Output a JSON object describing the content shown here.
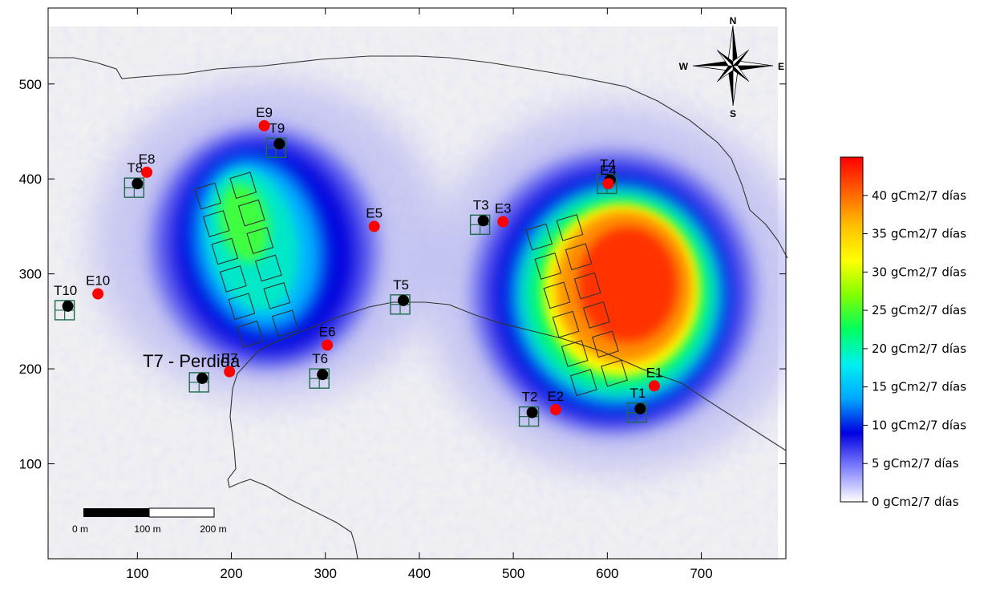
{
  "map": {
    "x_ticks": [
      "100",
      "200",
      "300",
      "400",
      "500",
      "600",
      "700"
    ],
    "y_ticks": [
      "100",
      "200",
      "300",
      "400",
      "500"
    ],
    "x_range": [
      5,
      790
    ],
    "y_range": [
      0,
      580
    ]
  },
  "compass": {
    "north": "N",
    "south": "S",
    "east": "E",
    "west": "W"
  },
  "scale_bar": {
    "labels": [
      "0 m",
      "100 m",
      "200 m"
    ]
  },
  "traps": [
    {
      "id": "T1",
      "label": "T1",
      "x": 635,
      "y": 158
    },
    {
      "id": "T2",
      "label": "T2",
      "x": 520,
      "y": 154
    },
    {
      "id": "T3",
      "label": "T3",
      "x": 468,
      "y": 356
    },
    {
      "id": "T4",
      "label": "T4",
      "x": 603,
      "y": 399
    },
    {
      "id": "T5",
      "label": "T5",
      "x": 383,
      "y": 272
    },
    {
      "id": "T6",
      "label": "T6",
      "x": 297,
      "y": 194
    },
    {
      "id": "T7",
      "label": "T7 - Perdida",
      "x": 169,
      "y": 190
    },
    {
      "id": "T8",
      "label": "T8",
      "x": 100,
      "y": 395
    },
    {
      "id": "T9",
      "label": "T9",
      "x": 251,
      "y": 437
    },
    {
      "id": "T10",
      "label": "T10",
      "x": 26,
      "y": 266
    }
  ],
  "estaciones": [
    {
      "id": "E1",
      "label": "E1",
      "x": 650,
      "y": 182
    },
    {
      "id": "E2",
      "label": "E2",
      "x": 545,
      "y": 157
    },
    {
      "id": "E3",
      "label": "E3",
      "x": 489,
      "y": 355
    },
    {
      "id": "E4",
      "label": "E4",
      "x": 601,
      "y": 395
    },
    {
      "id": "E5",
      "label": "E5",
      "x": 352,
      "y": 350
    },
    {
      "id": "E6",
      "label": "E6",
      "x": 302,
      "y": 225
    },
    {
      "id": "E7",
      "label": "E7",
      "x": 198,
      "y": 197
    },
    {
      "id": "E8",
      "label": "E8",
      "x": 110,
      "y": 407
    },
    {
      "id": "E9",
      "label": "E9",
      "x": 235,
      "y": 456
    },
    {
      "id": "E10",
      "label": "E10",
      "x": 58,
      "y": 279
    }
  ],
  "legend": {
    "max_value": 45,
    "colors": [
      "#ffffff",
      "#8080ff",
      "#0000e0",
      "#00a8ff",
      "#00f0f0",
      "#00ff60",
      "#80ff00",
      "#ffff00",
      "#ffc000",
      "#ff6000",
      "#ff0000"
    ],
    "entries": [
      {
        "value": 40,
        "label": "40  gCm2/7 días"
      },
      {
        "value": 35,
        "label": "35  gCm2/7 días"
      },
      {
        "value": 30,
        "label": "30  gCm2/7 días"
      },
      {
        "value": 25,
        "label": "25  gCm2/7 días"
      },
      {
        "value": 20,
        "label": "20  gCm2/7 días"
      },
      {
        "value": 15,
        "label": "15  gCm2/7 días"
      },
      {
        "value": 10,
        "label": "10  gCm2/7 días"
      },
      {
        "value": 5,
        "label": "5  gCm2/7 días"
      },
      {
        "value": 0,
        "label": "0  gCm2/7 días"
      }
    ]
  },
  "colors": {
    "trap_box": "#1e6b4a",
    "trap_dot": "#000000",
    "station_dot": "#ff0000",
    "plot_grid": "#333333"
  }
}
